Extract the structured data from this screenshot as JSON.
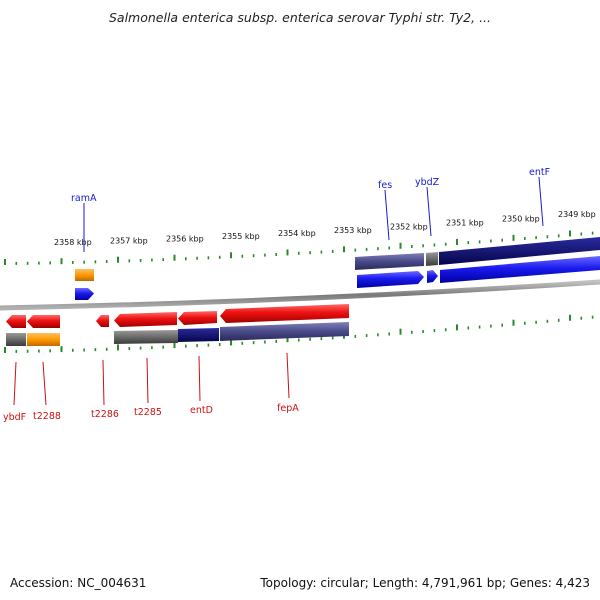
{
  "title": "Salmonella enterica subsp. enterica serovar Typhi str. Ty2, ...",
  "footer": {
    "accession": "Accession: NC_004631",
    "stats": "Topology: circular; Length: 4,791,961 bp; Genes: 4,423"
  },
  "scale_labels": [
    "2358 kbp",
    "2357 kbp",
    "2356 kbp",
    "2355 kbp",
    "2354 kbp",
    "2353 kbp",
    "2352 kbp",
    "2351 kbp",
    "2350 kbp",
    "2349 kbp"
  ],
  "gene_labels_top": [
    "ramA",
    "fes",
    "ybdZ",
    "entF"
  ],
  "gene_labels_bottom": [
    "ybdF",
    "t2288",
    "t2286",
    "t2285",
    "entD",
    "fepA"
  ],
  "colors": {
    "gene_red": "#ee1111",
    "gene_blue": "#1a1aee",
    "gene_orange": "#ff9900",
    "navy": "#0a0a7a",
    "slate": "#4a4a8a",
    "gray_box": "#6a6a6a",
    "tick_green": "#2a8a2a",
    "backbone": "#888888"
  }
}
